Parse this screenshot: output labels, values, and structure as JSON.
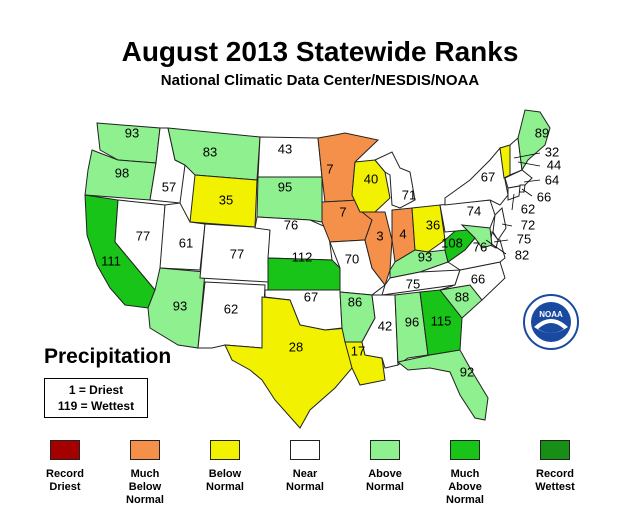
{
  "title": "August 2013 Statewide Ranks",
  "subtitle": "National Climatic Data Center/NESDIS/NOAA",
  "precip_label": "Precipitation",
  "key": {
    "driest": "1 = Driest",
    "wettest": "119 = Wettest"
  },
  "colors": {
    "record_driest": "#a50000",
    "much_below": "#f5904a",
    "below": "#f2f200",
    "near": "#ffffff",
    "above": "#8ef08e",
    "much_above": "#17c417",
    "record_wettest": "#178f17"
  },
  "legend": [
    {
      "label": "Record\nDriest",
      "color": "#a50000"
    },
    {
      "label": "Much\nBelow\nNormal",
      "color": "#f5904a"
    },
    {
      "label": "Below\nNormal",
      "color": "#f2f200"
    },
    {
      "label": "Near\nNormal",
      "color": "#ffffff"
    },
    {
      "label": "Above\nNormal",
      "color": "#8ef08e"
    },
    {
      "label": "Much\nAbove\nNormal",
      "color": "#17c417"
    },
    {
      "label": "Record\nWettest",
      "color": "#178f17"
    }
  ],
  "states": [
    {
      "id": "WA",
      "rank": "93",
      "category": "above"
    },
    {
      "id": "OR",
      "rank": "98",
      "category": "above"
    },
    {
      "id": "CA",
      "rank": "111",
      "category": "much_above"
    },
    {
      "id": "NV",
      "rank": "77",
      "category": "near"
    },
    {
      "id": "ID",
      "rank": "57",
      "category": "near"
    },
    {
      "id": "MT",
      "rank": "83",
      "category": "above"
    },
    {
      "id": "WY",
      "rank": "35",
      "category": "below"
    },
    {
      "id": "UT",
      "rank": "61",
      "category": "near"
    },
    {
      "id": "AZ",
      "rank": "93",
      "category": "above"
    },
    {
      "id": "CO",
      "rank": "77",
      "category": "near"
    },
    {
      "id": "NM",
      "rank": "62",
      "category": "near"
    },
    {
      "id": "ND",
      "rank": "43",
      "category": "near"
    },
    {
      "id": "SD",
      "rank": "95",
      "category": "above"
    },
    {
      "id": "NE",
      "rank": "76",
      "category": "near"
    },
    {
      "id": "KS",
      "rank": "112",
      "category": "much_above"
    },
    {
      "id": "OK",
      "rank": "67",
      "category": "near"
    },
    {
      "id": "TX",
      "rank": "28",
      "category": "below"
    },
    {
      "id": "MN",
      "rank": "7",
      "category": "much_below"
    },
    {
      "id": "IA",
      "rank": "7",
      "category": "much_below"
    },
    {
      "id": "MO",
      "rank": "70",
      "category": "near"
    },
    {
      "id": "AR",
      "rank": "86",
      "category": "above"
    },
    {
      "id": "LA",
      "rank": "17",
      "category": "below"
    },
    {
      "id": "WI",
      "rank": "40",
      "category": "below"
    },
    {
      "id": "IL",
      "rank": "3",
      "category": "much_below"
    },
    {
      "id": "MI",
      "rank": "71",
      "category": "near"
    },
    {
      "id": "IN",
      "rank": "4",
      "category": "much_below"
    },
    {
      "id": "OH",
      "rank": "36",
      "category": "below"
    },
    {
      "id": "KY",
      "rank": "93",
      "category": "above"
    },
    {
      "id": "TN",
      "rank": "75",
      "category": "near"
    },
    {
      "id": "MS",
      "rank": "42",
      "category": "near"
    },
    {
      "id": "AL",
      "rank": "96",
      "category": "above"
    },
    {
      "id": "GA",
      "rank": "115",
      "category": "much_above"
    },
    {
      "id": "FL",
      "rank": "92",
      "category": "above"
    },
    {
      "id": "SC",
      "rank": "88",
      "category": "above"
    },
    {
      "id": "NC",
      "rank": "66",
      "category": "near"
    },
    {
      "id": "VA",
      "rank": "76",
      "category": "near"
    },
    {
      "id": "WV",
      "rank": "108",
      "category": "much_above"
    },
    {
      "id": "PA",
      "rank": "74",
      "category": "near"
    },
    {
      "id": "NY",
      "rank": "67",
      "category": "near"
    },
    {
      "id": "VT",
      "rank": "",
      "category": "below"
    },
    {
      "id": "NH",
      "rank": "",
      "category": "near"
    },
    {
      "id": "ME",
      "rank": "89",
      "category": "above"
    },
    {
      "id": "MA",
      "rank": "",
      "category": "near"
    },
    {
      "id": "RI",
      "rank": "",
      "category": "near"
    },
    {
      "id": "CT",
      "rank": "",
      "category": "near"
    },
    {
      "id": "NJ",
      "rank": "",
      "category": "near"
    },
    {
      "id": "DE",
      "rank": "",
      "category": "near"
    },
    {
      "id": "MD",
      "rank": "",
      "category": "above"
    }
  ],
  "callouts": [
    {
      "rank": "32"
    },
    {
      "rank": "44"
    },
    {
      "rank": "64"
    },
    {
      "rank": "66"
    },
    {
      "rank": "62"
    },
    {
      "rank": "72"
    },
    {
      "rank": "75"
    },
    {
      "rank": "82"
    }
  ]
}
